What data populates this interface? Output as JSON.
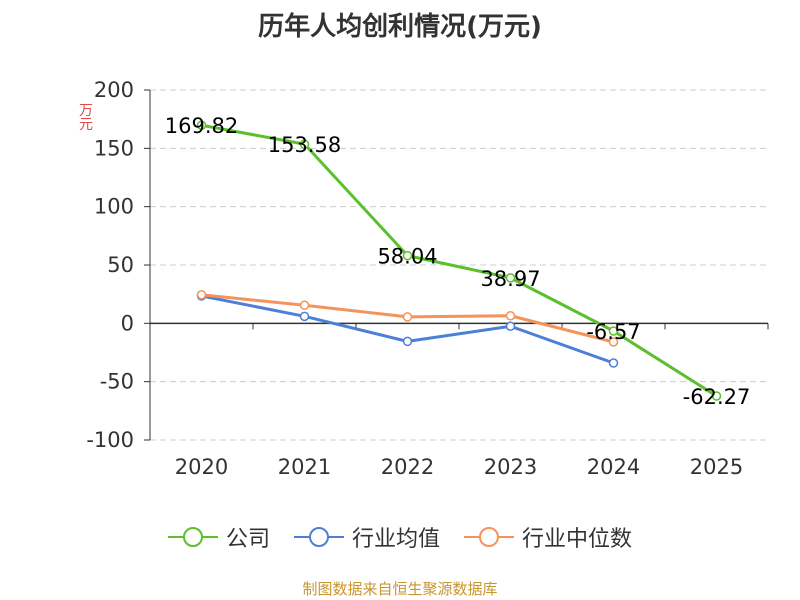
{
  "colors": {
    "company": "#5ac02b",
    "industry_avg": "#4b7fd8",
    "industry_median": "#f5935a",
    "axis": "#333333",
    "grid": "#cccccc",
    "ylabel": "#e04a4a",
    "footer": "#c8952e"
  },
  "chart_data": {
    "type": "line",
    "title": "历年人均创利情况(万元)",
    "ylabel": "万元",
    "xlabel": "",
    "categories": [
      "2020",
      "2021",
      "2022",
      "2023",
      "2024",
      "2025"
    ],
    "ylim": [
      -100,
      200
    ],
    "yticks": [
      200,
      150,
      100,
      50,
      0,
      -50,
      -100
    ],
    "grid": true,
    "legend_position": "bottom",
    "series": [
      {
        "name": "公司",
        "color": "#5ac02b",
        "values": [
          169.82,
          153.58,
          58.04,
          38.97,
          -6.57,
          -62.27
        ],
        "labels": [
          "169.82",
          "153.58",
          "58.04",
          "38.97",
          "-6.57",
          "-62.27"
        ]
      },
      {
        "name": "行业均值",
        "color": "#4b7fd8",
        "values": [
          23.5,
          6.0,
          -15.5,
          -2.5,
          -34.0,
          null
        ]
      },
      {
        "name": "行业中位数",
        "color": "#f5935a",
        "values": [
          24.5,
          15.5,
          5.5,
          6.5,
          -16.0,
          null
        ]
      }
    ]
  },
  "footer": {
    "source": "制图数据来自恒生聚源数据库"
  }
}
